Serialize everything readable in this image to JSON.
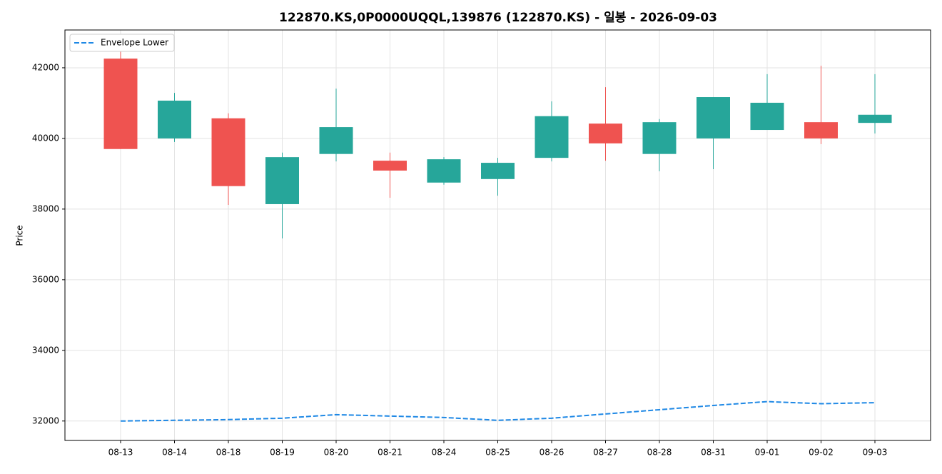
{
  "chart_data": {
    "type": "candlestick",
    "title": "122870.KS,0P0000UQQL,139876 (122870.KS) - 일봉 - 2026-09-03",
    "y_label": "Price",
    "categories": [
      "08-13",
      "08-14",
      "08-18",
      "08-19",
      "08-20",
      "08-21",
      "08-24",
      "08-25",
      "08-26",
      "08-27",
      "08-28",
      "08-31",
      "09-01",
      "09-02",
      "09-03"
    ],
    "open": [
      39700,
      41070,
      38650,
      39470,
      40320,
      39090,
      39410,
      39310,
      40630,
      39860,
      40460,
      41170,
      41010,
      40000,
      40670
    ],
    "high": [
      42460,
      41290,
      40710,
      39600,
      41410,
      39600,
      39470,
      39450,
      41050,
      41450,
      40550,
      41170,
      41820,
      42060,
      41820
    ],
    "low": [
      39700,
      39900,
      38120,
      37170,
      39350,
      38320,
      38690,
      38380,
      39350,
      39370,
      39070,
      39130,
      40240,
      39840,
      40140
    ],
    "close": [
      42260,
      40000,
      40570,
      38140,
      39560,
      39370,
      38750,
      38850,
      39450,
      40420,
      39560,
      40000,
      40240,
      40460,
      40440
    ],
    "up_color": "#ef5350",
    "down_color": "#26a69a",
    "series": [
      {
        "name": "Envelope Lower",
        "color": "#1e88e5",
        "style": "dashed",
        "values": [
          32000,
          32020,
          32040,
          32080,
          32180,
          32140,
          32100,
          32020,
          32080,
          32200,
          32320,
          32440,
          32550,
          32490,
          32520
        ]
      }
    ],
    "ylim": [
      31450,
      43070
    ],
    "yticks": [
      32000,
      34000,
      36000,
      38000,
      40000,
      42000
    ],
    "grid": true,
    "legend": "upper left"
  }
}
